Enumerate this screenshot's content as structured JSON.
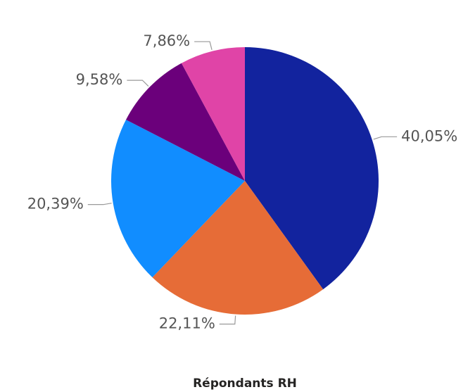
{
  "chart_data": {
    "type": "pie",
    "title": "Répondants RH",
    "values": [
      40.05,
      22.11,
      20.39,
      9.58,
      7.86
    ],
    "value_labels": [
      "40,05%",
      "22,11%",
      "20,39%",
      "9,58%",
      "7,86%"
    ],
    "colors": [
      "#12239e",
      "#e66c37",
      "#118dff",
      "#6b007b",
      "#e044a7"
    ]
  }
}
